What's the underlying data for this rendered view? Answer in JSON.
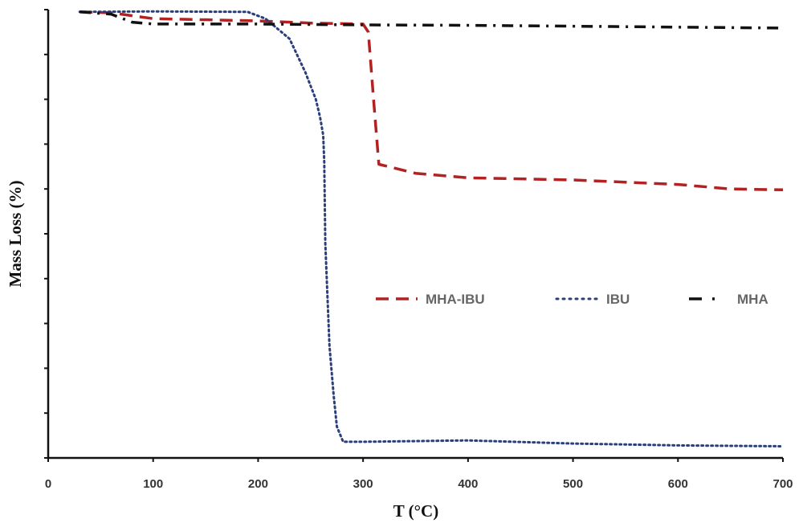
{
  "chart_data": {
    "type": "line",
    "title": "",
    "xlabel": "T (°C)",
    "ylabel": "Mass Loss (%)",
    "xlim": [
      0,
      700
    ],
    "ylim": [
      0,
      100
    ],
    "xticks": [
      0,
      100,
      200,
      300,
      400,
      500,
      600,
      700
    ],
    "yticks": [
      0,
      10,
      20,
      30,
      40,
      50,
      60,
      70,
      80,
      90,
      100
    ],
    "ytick_labels_shown": false,
    "grid": false,
    "legend_position": "center-right",
    "series": [
      {
        "name": "MHA-IBU",
        "color": "#b22222",
        "style": "dashed",
        "x": [
          30,
          60,
          100,
          200,
          250,
          300,
          305,
          310,
          315,
          350,
          400,
          500,
          600,
          650,
          700
        ],
        "y": [
          99.5,
          99.3,
          98,
          97.5,
          97,
          96.8,
          95,
          80,
          65.5,
          63.5,
          62.5,
          62,
          61,
          60,
          59.8
        ]
      },
      {
        "name": "IBU",
        "color": "#2b3f7a",
        "style": "dotted",
        "x": [
          30,
          100,
          190,
          207,
          230,
          245,
          255,
          259,
          262,
          263,
          264,
          268,
          272,
          275,
          281,
          300,
          400,
          500,
          600,
          700
        ],
        "y": [
          99.5,
          99.6,
          99.5,
          98,
          93.5,
          86,
          80,
          76,
          72,
          66,
          48,
          25,
          14,
          7,
          3.6,
          3.6,
          3.9,
          3.2,
          2.8,
          2.6
        ]
      },
      {
        "name": "MHA",
        "color": "#111111",
        "style": "dashdot",
        "x": [
          30,
          60,
          80,
          100,
          200,
          300,
          400,
          500,
          600,
          700
        ],
        "y": [
          99.5,
          99,
          97.2,
          96.8,
          96.8,
          96.6,
          96.5,
          96.3,
          96.1,
          95.9
        ]
      }
    ]
  }
}
